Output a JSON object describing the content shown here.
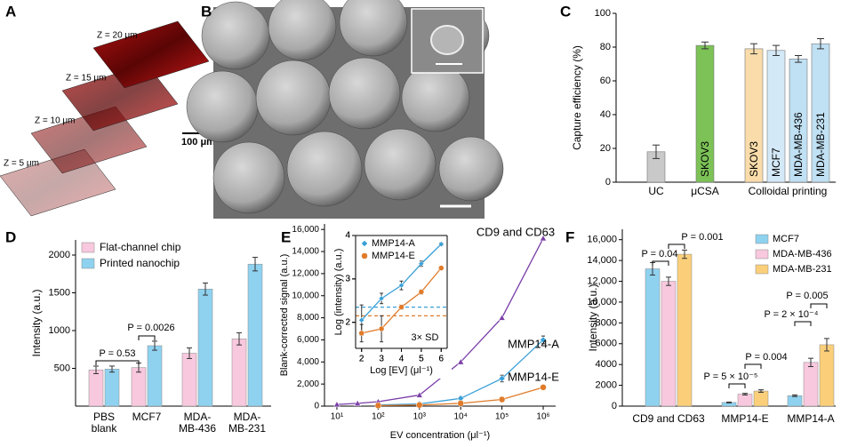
{
  "panel_labels": [
    "A",
    "B",
    "C",
    "D",
    "E",
    "F"
  ],
  "image_a": {
    "z_labels": [
      "Z = 5 μm",
      "Z = 10 μm",
      "Z = 15 μm",
      "Z = 20 μm"
    ],
    "scale_bar": "100 μm"
  },
  "chart_data": [
    {
      "type": "bar",
      "ylabel": "Capture efficiency (%)",
      "groups": [
        "UC",
        "μCSA",
        "Colloidal printing"
      ],
      "bar_labels": [
        null,
        "SKOV3",
        "SKOV3",
        "MCF7",
        "MDA-MB-436",
        "MDA-MB-231"
      ],
      "values": [
        18,
        81,
        79,
        78,
        73,
        82
      ],
      "errors": [
        4,
        2,
        3,
        3,
        2,
        3
      ],
      "colors": [
        "#c9c9c9",
        "#7cc257",
        "#f9dcaa",
        "#d4e9f7",
        "#c0e0f3",
        "#c0e0f3"
      ],
      "ylim": [
        0,
        100
      ],
      "yticks": [
        0,
        20,
        40,
        60,
        80,
        100
      ]
    },
    {
      "type": "grouped-bar",
      "ylabel": "Intensity (a.u.)",
      "categories": [
        [
          "PBS",
          "blank"
        ],
        [
          "MCF7"
        ],
        [
          "MDA-",
          "MB-436"
        ],
        [
          "MDA-",
          "MB-231"
        ]
      ],
      "series": [
        {
          "name": "Flat-channel chip",
          "color": "#f8c8de",
          "values": [
            480,
            510,
            700,
            890
          ],
          "errors": [
            50,
            60,
            70,
            80
          ]
        },
        {
          "name": "Printed nanochip",
          "color": "#8fd2f0",
          "values": [
            490,
            800,
            1550,
            1880
          ],
          "errors": [
            40,
            60,
            80,
            90
          ]
        }
      ],
      "ylim": [
        0,
        2200
      ],
      "yticks": [
        500,
        1000,
        1500,
        2000
      ],
      "annotations": [
        "P = 0.53",
        "P = 0.0026"
      ]
    },
    {
      "type": "line",
      "xlabel": "EV concentration (μl⁻¹)",
      "ylabel": "Blank-corrected signal (a.u.)",
      "log_x": true,
      "xlim": [
        5,
        2000000
      ],
      "xticks": [
        {
          "value": 10,
          "label": "10¹"
        },
        {
          "value": 100,
          "label": "10²"
        },
        {
          "value": 1000,
          "label": "10³"
        },
        {
          "value": 10000,
          "label": "10⁴"
        },
        {
          "value": 100000,
          "label": "10⁵"
        },
        {
          "value": 1000000,
          "label": "10⁶"
        }
      ],
      "ylim": [
        0,
        16500
      ],
      "yticks": [
        0,
        {
          "value": 2000,
          "label": "2,000"
        },
        {
          "value": 4000,
          "label": "4,000"
        },
        {
          "value": 6000,
          "label": "6,000"
        },
        {
          "value": 8000,
          "label": "8,000"
        },
        {
          "value": 10000,
          "label": "10,000"
        },
        {
          "value": 12000,
          "label": "12,000"
        },
        {
          "value": 14000,
          "label": "14,000"
        },
        {
          "value": 16000,
          "label": "16,000"
        }
      ],
      "series": [
        {
          "name": "CD9 and CD63",
          "color": "#7b3fa8",
          "marker": "triangle",
          "x": [
            10,
            31.6,
            100,
            1000,
            10000,
            100000,
            1000000
          ],
          "values": [
            150,
            250,
            400,
            1000,
            4000,
            8000,
            15200
          ]
        },
        {
          "name": "MMP14-A",
          "color": "#3aa0d8",
          "marker": "diamond",
          "x": [
            100,
            1000,
            10000,
            100000,
            1000000
          ],
          "values": [
            100,
            200,
            700,
            2500,
            6000
          ],
          "errors": [
            50,
            80,
            150,
            300,
            350
          ]
        },
        {
          "name": "MMP14-E",
          "color": "#e07b2a",
          "marker": "circle",
          "x": [
            100,
            1000,
            10000,
            100000,
            1000000
          ],
          "values": [
            50,
            100,
            250,
            600,
            1700
          ],
          "errors": [
            30,
            50,
            80,
            100,
            120
          ]
        }
      ]
    },
    {
      "type": "scatter",
      "xlabel": "Log [EV] (μl⁻¹)",
      "ylabel": "Log (intensity) (a.u.)",
      "xlim": [
        1.7,
        6.3
      ],
      "xticks": [
        2,
        3,
        4,
        5,
        6
      ],
      "ylim": [
        1.4,
        4
      ],
      "yticks": [
        2,
        3,
        4
      ],
      "series": [
        {
          "name": "MMP14-A",
          "color": "#3aa0d8",
          "marker": "diamond",
          "x": [
            2,
            3,
            4,
            5,
            6
          ],
          "values": [
            2.05,
            2.55,
            2.85,
            3.35,
            3.8
          ],
          "errors": [
            0.35,
            0.12,
            0.1,
            0.06,
            0.03
          ]
        },
        {
          "name": "MMP14-E",
          "color": "#e07b2a",
          "marker": "circle",
          "x": [
            2,
            3,
            4,
            5,
            6
          ],
          "values": [
            1.75,
            1.85,
            2.35,
            2.7,
            3.25
          ],
          "errors": [
            0.2,
            0.3,
            0.05,
            0.05,
            0.03
          ]
        }
      ],
      "threshold_lines": [
        {
          "value": 2.35,
          "color": "#3aa0d8"
        },
        {
          "value": 2.15,
          "color": "#e07b2a"
        }
      ],
      "annotation": "3× SD"
    },
    {
      "type": "grouped-bar",
      "ylabel": "Intensity (a.u.)",
      "categories": [
        [
          "CD9 and CD63"
        ],
        [
          "MMP14-E"
        ],
        [
          "MMP14-A"
        ]
      ],
      "series": [
        {
          "name": "MCF7",
          "color": "#8fd2f0",
          "values": [
            13200,
            350,
            1000
          ],
          "errors": [
            600,
            40,
            80
          ]
        },
        {
          "name": "MDA-MB-436",
          "color": "#f8c8de",
          "values": [
            12000,
            1150,
            4200
          ],
          "errors": [
            400,
            80,
            400
          ]
        },
        {
          "name": "MDA-MB-231",
          "color": "#fbcf7a",
          "values": [
            14600,
            1450,
            5900
          ],
          "errors": [
            400,
            120,
            600
          ]
        }
      ],
      "ylim": [
        0,
        17000
      ],
      "yticks": [
        0,
        {
          "value": 2000,
          "label": "2000"
        },
        {
          "value": 4000,
          "label": "4000"
        },
        {
          "value": 6000,
          "label": "6000"
        },
        {
          "value": 8000,
          "label": "8000"
        },
        {
          "value": 10000,
          "label": "10,000"
        },
        {
          "value": 12000,
          "label": "12,000"
        },
        {
          "value": 14000,
          "label": "14,000"
        },
        {
          "value": 16000,
          "label": "16,000"
        }
      ],
      "annotations": [
        "P = 0.04",
        "P = 0.001",
        "P = 5 × 10⁻⁵",
        "P = 0.004",
        "P = 2 × 10⁻⁴",
        "P = 0.005"
      ]
    }
  ]
}
